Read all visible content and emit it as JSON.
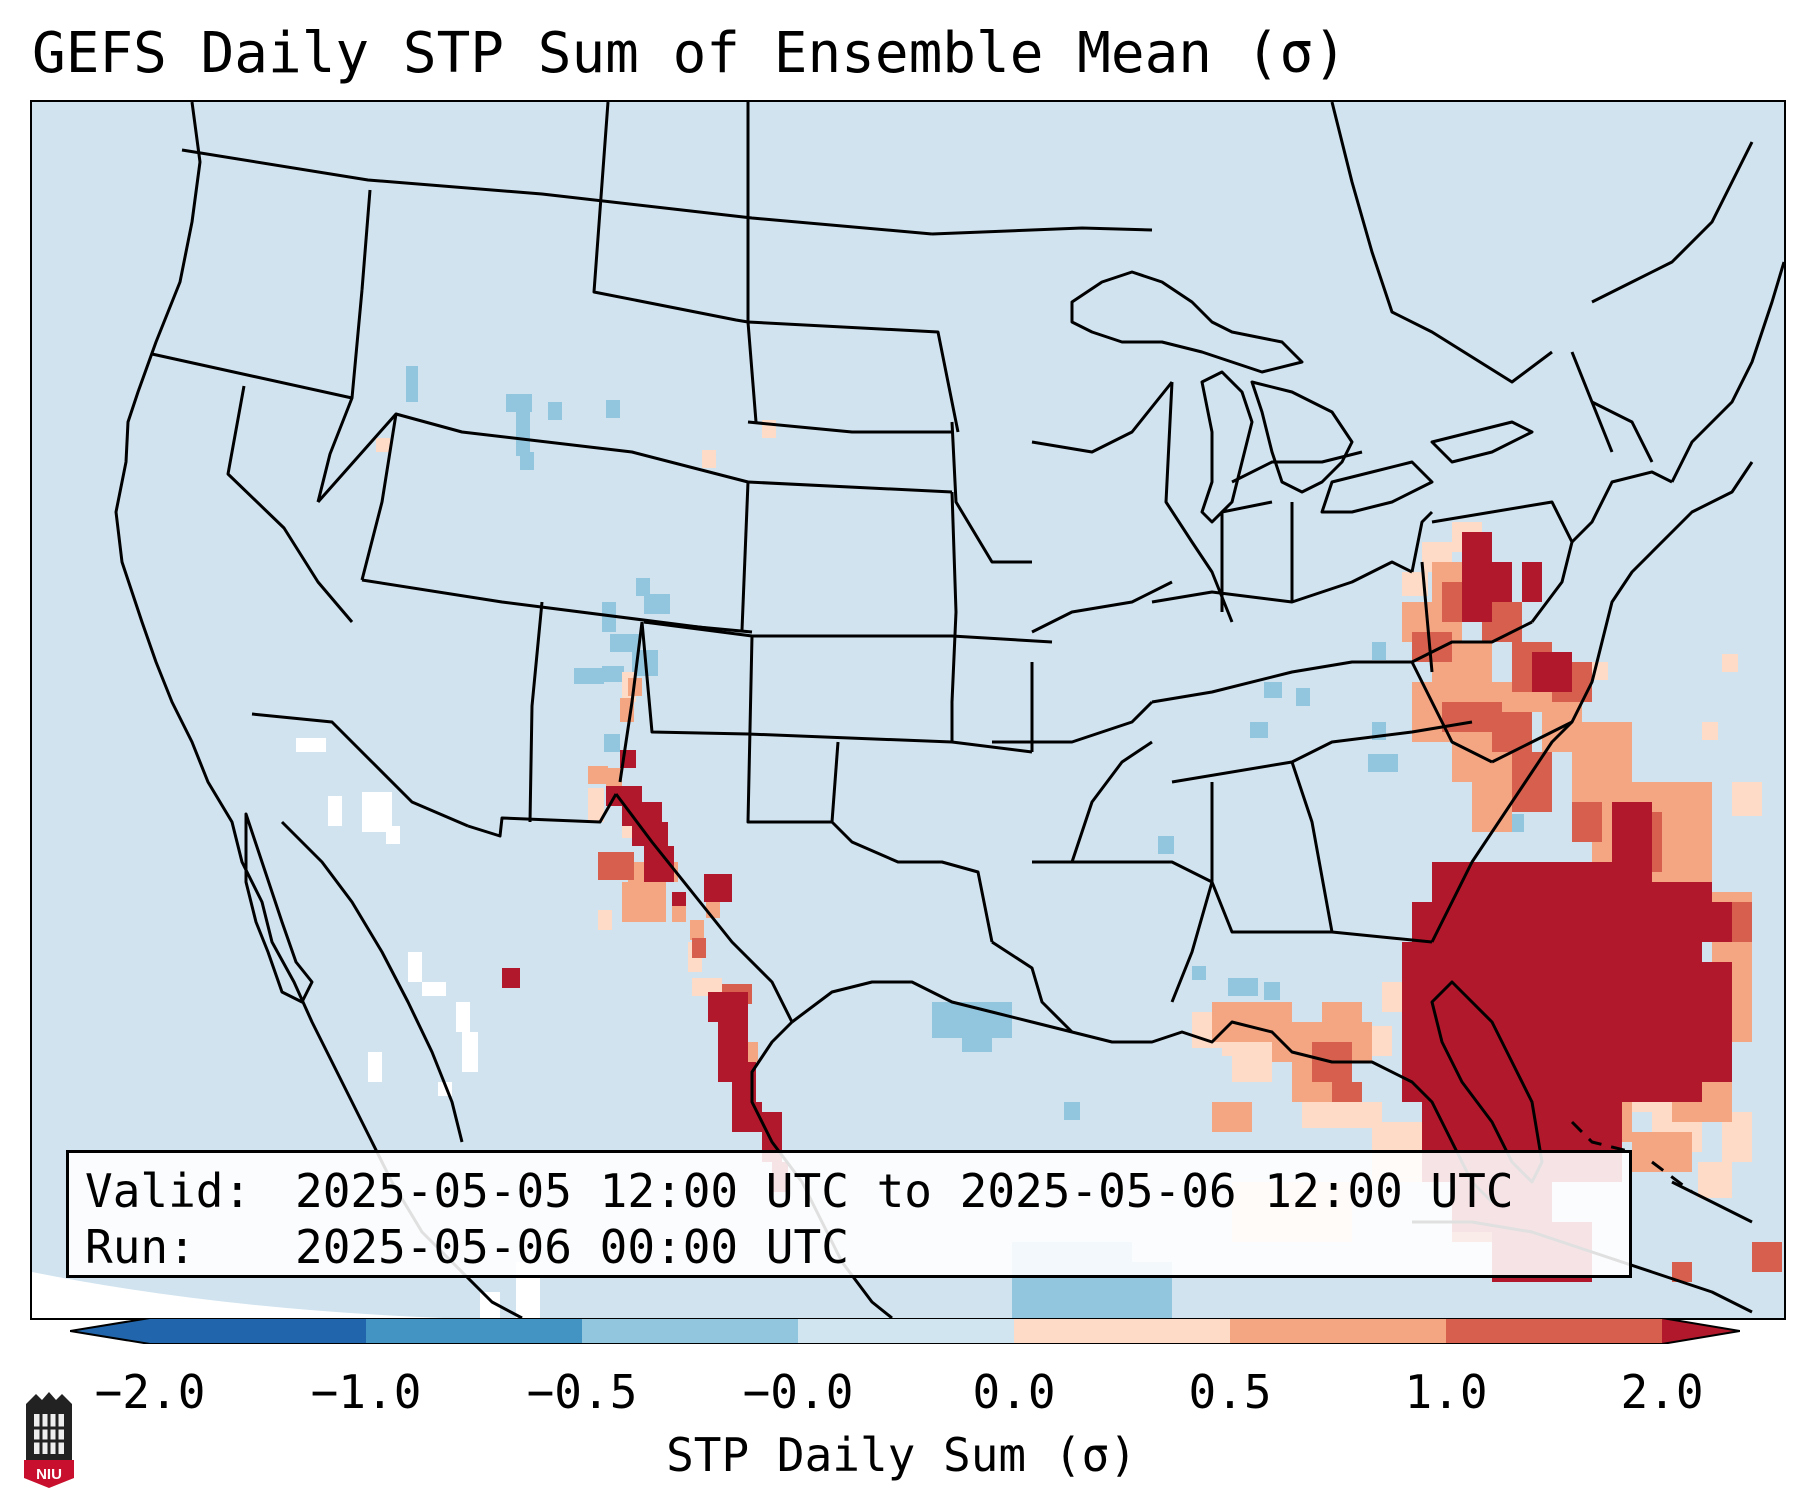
{
  "title": "GEFS Daily STP Sum of Ensemble Mean (σ)",
  "info": {
    "valid_label": "Valid:",
    "valid_value": "2025-05-05 12:00 UTC to 2025-05-06 12:00 UTC",
    "run_label": "Run:",
    "run_value": "2025-05-06 00:00 UTC"
  },
  "colorbar": {
    "ticks": [
      "−2.0",
      "−1.0",
      "−0.5",
      "−0.0",
      "0.0",
      "0.5",
      "1.0",
      "2.0"
    ],
    "label": "STP Daily Sum (σ)",
    "colors": [
      "#2166ac",
      "#4393c3",
      "#92c5de",
      "#d1e5f0",
      "#fddbc7",
      "#f4a582",
      "#d6604d",
      "#b2182b"
    ]
  },
  "logo_text": "NIU",
  "colors": {
    "ocean_land_background": "#d0e3ef",
    "positive_max": "#b2182b",
    "negative_max": "#2166ac"
  }
}
